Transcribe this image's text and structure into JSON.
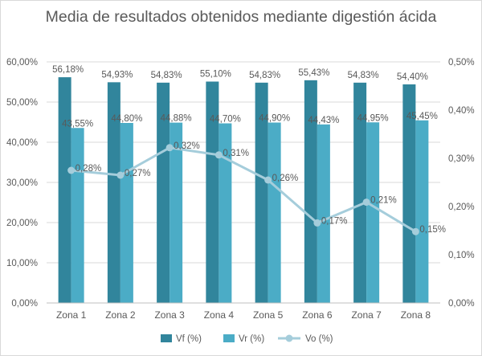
{
  "chart_data": {
    "type": "bar",
    "title": "Media de resultados obtenidos mediante digestión ácida",
    "categories": [
      "Zona 1",
      "Zona 2",
      "Zona 3",
      "Zona 4",
      "Zona 5",
      "Zona 6",
      "Zona 7",
      "Zona 8"
    ],
    "y_left": {
      "min": 0,
      "max": 60,
      "step": 10,
      "tick_labels": [
        "0,00%",
        "10,00%",
        "20,00%",
        "30,00%",
        "40,00%",
        "50,00%",
        "60,00%"
      ]
    },
    "y_right": {
      "min": 0,
      "max": 0.5,
      "step": 0.1,
      "tick_labels": [
        "0,00%",
        "0,10%",
        "0,20%",
        "0,30%",
        "0,40%",
        "0,50%"
      ]
    },
    "grid": true,
    "legend_position": "bottom",
    "series": [
      {
        "name": "Vf (%)",
        "kind": "bar",
        "axis": "left",
        "color": "#31859c",
        "values": [
          56.18,
          54.93,
          54.83,
          55.1,
          54.83,
          55.43,
          54.83,
          54.4
        ],
        "labels": [
          "56,18%",
          "54,93%",
          "54,83%",
          "55,10%",
          "54,83%",
          "55,43%",
          "54,83%",
          "54,40%"
        ]
      },
      {
        "name": "Vr (%)",
        "kind": "bar",
        "axis": "left",
        "color": "#4bacc6",
        "values": [
          43.55,
          44.8,
          44.88,
          44.7,
          44.9,
          44.43,
          44.95,
          45.45
        ],
        "labels": [
          "43,55%",
          "44,80%",
          "44,88%",
          "44,70%",
          "44,90%",
          "44,43%",
          "44,95%",
          "45,45%"
        ]
      },
      {
        "name": "Vo (%)",
        "kind": "line",
        "axis": "right",
        "color": "#a5cddb",
        "values": [
          0.275,
          0.265,
          0.322,
          0.307,
          0.255,
          0.166,
          0.209,
          0.148
        ],
        "labels": [
          "0,28%",
          "0,27%",
          "0,32%",
          "0,31%",
          "0,26%",
          "0,17%",
          "0,21%",
          "0,15%"
        ]
      }
    ]
  }
}
